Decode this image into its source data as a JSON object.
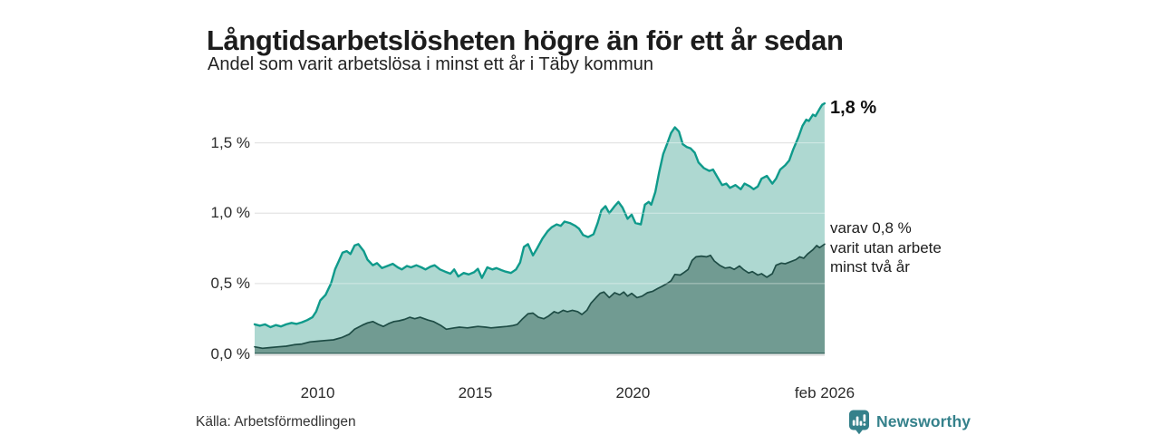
{
  "header": {
    "title": "Långtidsarbetslösheten högre än för ett år sedan",
    "subtitle": "Andel som varit arbetslösa i minst ett år i Täby kommun"
  },
  "chart_data": {
    "type": "area",
    "title": "Långtidsarbetslösheten högre än för ett år sedan",
    "subtitle": "Andel som varit arbetslösa i minst ett år i Täby kommun",
    "grid": true,
    "x_range": [
      2008.0,
      2026.083
    ],
    "y_range": [
      0,
      1.8
    ],
    "colors": {
      "series1_line": "#0f9a8b",
      "series1_fill": "#aed8d1",
      "series2_line": "#1e4c45",
      "series2_fill": "#719b92",
      "gridline": "#cccccc",
      "baseline": "#2c5a52"
    },
    "y_ticks": [
      {
        "label": "1,5 %",
        "value": 1.5
      },
      {
        "label": "1,0 %",
        "value": 1.0
      },
      {
        "label": "0,5 %",
        "value": 0.5
      },
      {
        "label": "0,0 %",
        "value": 0.0
      }
    ],
    "x_ticks": [
      {
        "label": "2010",
        "year": 2010
      },
      {
        "label": "2015",
        "year": 2015
      },
      {
        "label": "2020",
        "year": 2020
      },
      {
        "label": "feb 2026",
        "year": 2026.083
      }
    ],
    "annotations": {
      "end_label": "1,8 %",
      "side_lines": [
        "varav 0,8 %",
        "varit utan arbete",
        "minst två år"
      ]
    },
    "series": [
      {
        "name": "Andel som varit arbetslösa i minst ett år",
        "end_value_label": "1,8 %",
        "points": [
          [
            2008.0,
            0.21
          ],
          [
            2008.17,
            0.2
          ],
          [
            2008.33,
            0.21
          ],
          [
            2008.5,
            0.19
          ],
          [
            2008.67,
            0.205
          ],
          [
            2008.83,
            0.195
          ],
          [
            2009.0,
            0.21
          ],
          [
            2009.17,
            0.22
          ],
          [
            2009.33,
            0.213
          ],
          [
            2009.5,
            0.225
          ],
          [
            2009.67,
            0.24
          ],
          [
            2009.83,
            0.26
          ],
          [
            2009.95,
            0.3
          ],
          [
            2010.08,
            0.38
          ],
          [
            2010.25,
            0.42
          ],
          [
            2010.42,
            0.5
          ],
          [
            2010.55,
            0.6
          ],
          [
            2010.67,
            0.66
          ],
          [
            2010.79,
            0.72
          ],
          [
            2010.92,
            0.73
          ],
          [
            2011.04,
            0.71
          ],
          [
            2011.17,
            0.77
          ],
          [
            2011.29,
            0.78
          ],
          [
            2011.46,
            0.73
          ],
          [
            2011.58,
            0.67
          ],
          [
            2011.75,
            0.63
          ],
          [
            2011.88,
            0.645
          ],
          [
            2012.04,
            0.61
          ],
          [
            2012.21,
            0.625
          ],
          [
            2012.38,
            0.64
          ],
          [
            2012.54,
            0.615
          ],
          [
            2012.67,
            0.6
          ],
          [
            2012.83,
            0.625
          ],
          [
            2012.96,
            0.615
          ],
          [
            2013.13,
            0.63
          ],
          [
            2013.29,
            0.615
          ],
          [
            2013.42,
            0.6
          ],
          [
            2013.58,
            0.62
          ],
          [
            2013.71,
            0.63
          ],
          [
            2013.88,
            0.6
          ],
          [
            2014.04,
            0.585
          ],
          [
            2014.21,
            0.57
          ],
          [
            2014.33,
            0.6
          ],
          [
            2014.46,
            0.55
          ],
          [
            2014.63,
            0.575
          ],
          [
            2014.79,
            0.565
          ],
          [
            2014.96,
            0.58
          ],
          [
            2015.08,
            0.605
          ],
          [
            2015.21,
            0.54
          ],
          [
            2015.38,
            0.615
          ],
          [
            2015.54,
            0.6
          ],
          [
            2015.67,
            0.61
          ],
          [
            2015.83,
            0.595
          ],
          [
            2015.96,
            0.585
          ],
          [
            2016.13,
            0.575
          ],
          [
            2016.29,
            0.6
          ],
          [
            2016.42,
            0.65
          ],
          [
            2016.54,
            0.76
          ],
          [
            2016.67,
            0.78
          ],
          [
            2016.83,
            0.7
          ],
          [
            2016.96,
            0.75
          ],
          [
            2017.13,
            0.82
          ],
          [
            2017.29,
            0.87
          ],
          [
            2017.42,
            0.9
          ],
          [
            2017.58,
            0.92
          ],
          [
            2017.71,
            0.91
          ],
          [
            2017.83,
            0.94
          ],
          [
            2018.0,
            0.93
          ],
          [
            2018.17,
            0.91
          ],
          [
            2018.29,
            0.89
          ],
          [
            2018.42,
            0.845
          ],
          [
            2018.58,
            0.83
          ],
          [
            2018.75,
            0.85
          ],
          [
            2018.88,
            0.93
          ],
          [
            2019.0,
            1.02
          ],
          [
            2019.13,
            1.05
          ],
          [
            2019.25,
            1.0
          ],
          [
            2019.42,
            1.05
          ],
          [
            2019.54,
            1.08
          ],
          [
            2019.67,
            1.04
          ],
          [
            2019.83,
            0.96
          ],
          [
            2019.96,
            0.99
          ],
          [
            2020.08,
            0.93
          ],
          [
            2020.25,
            0.92
          ],
          [
            2020.38,
            1.06
          ],
          [
            2020.5,
            1.08
          ],
          [
            2020.58,
            1.06
          ],
          [
            2020.71,
            1.15
          ],
          [
            2020.83,
            1.29
          ],
          [
            2020.96,
            1.42
          ],
          [
            2021.08,
            1.49
          ],
          [
            2021.21,
            1.57
          ],
          [
            2021.33,
            1.61
          ],
          [
            2021.46,
            1.58
          ],
          [
            2021.58,
            1.49
          ],
          [
            2021.71,
            1.47
          ],
          [
            2021.83,
            1.46
          ],
          [
            2021.96,
            1.43
          ],
          [
            2022.08,
            1.36
          ],
          [
            2022.25,
            1.32
          ],
          [
            2022.42,
            1.3
          ],
          [
            2022.54,
            1.31
          ],
          [
            2022.67,
            1.26
          ],
          [
            2022.83,
            1.2
          ],
          [
            2022.96,
            1.21
          ],
          [
            2023.08,
            1.18
          ],
          [
            2023.25,
            1.2
          ],
          [
            2023.42,
            1.17
          ],
          [
            2023.54,
            1.21
          ],
          [
            2023.71,
            1.19
          ],
          [
            2023.83,
            1.17
          ],
          [
            2023.96,
            1.19
          ],
          [
            2024.08,
            1.245
          ],
          [
            2024.25,
            1.265
          ],
          [
            2024.42,
            1.21
          ],
          [
            2024.54,
            1.245
          ],
          [
            2024.67,
            1.31
          ],
          [
            2024.83,
            1.34
          ],
          [
            2024.96,
            1.375
          ],
          [
            2025.08,
            1.45
          ],
          [
            2025.25,
            1.54
          ],
          [
            2025.38,
            1.62
          ],
          [
            2025.5,
            1.665
          ],
          [
            2025.58,
            1.655
          ],
          [
            2025.71,
            1.7
          ],
          [
            2025.79,
            1.69
          ],
          [
            2025.92,
            1.74
          ],
          [
            2026.0,
            1.77
          ],
          [
            2026.08,
            1.78
          ]
        ]
      },
      {
        "name": "varav varit utan arbete minst två år",
        "end_value_label": "0,8 %",
        "points": [
          [
            2008.0,
            0.05
          ],
          [
            2008.25,
            0.04
          ],
          [
            2008.5,
            0.045
          ],
          [
            2008.75,
            0.05
          ],
          [
            2009.0,
            0.055
          ],
          [
            2009.25,
            0.065
          ],
          [
            2009.5,
            0.07
          ],
          [
            2009.75,
            0.085
          ],
          [
            2010.0,
            0.09
          ],
          [
            2010.25,
            0.095
          ],
          [
            2010.5,
            0.1
          ],
          [
            2010.75,
            0.115
          ],
          [
            2011.0,
            0.14
          ],
          [
            2011.17,
            0.175
          ],
          [
            2011.42,
            0.205
          ],
          [
            2011.58,
            0.22
          ],
          [
            2011.75,
            0.23
          ],
          [
            2011.92,
            0.21
          ],
          [
            2012.08,
            0.195
          ],
          [
            2012.25,
            0.215
          ],
          [
            2012.42,
            0.23
          ],
          [
            2012.58,
            0.235
          ],
          [
            2012.75,
            0.245
          ],
          [
            2012.92,
            0.26
          ],
          [
            2013.08,
            0.25
          ],
          [
            2013.25,
            0.26
          ],
          [
            2013.5,
            0.24
          ],
          [
            2013.67,
            0.23
          ],
          [
            2013.92,
            0.2
          ],
          [
            2014.08,
            0.175
          ],
          [
            2014.33,
            0.185
          ],
          [
            2014.5,
            0.19
          ],
          [
            2014.75,
            0.185
          ],
          [
            2014.92,
            0.19
          ],
          [
            2015.08,
            0.195
          ],
          [
            2015.33,
            0.19
          ],
          [
            2015.5,
            0.185
          ],
          [
            2015.75,
            0.19
          ],
          [
            2016.0,
            0.195
          ],
          [
            2016.17,
            0.2
          ],
          [
            2016.33,
            0.21
          ],
          [
            2016.5,
            0.25
          ],
          [
            2016.67,
            0.285
          ],
          [
            2016.83,
            0.29
          ],
          [
            2017.0,
            0.26
          ],
          [
            2017.17,
            0.25
          ],
          [
            2017.33,
            0.27
          ],
          [
            2017.5,
            0.3
          ],
          [
            2017.63,
            0.29
          ],
          [
            2017.79,
            0.31
          ],
          [
            2017.92,
            0.3
          ],
          [
            2018.08,
            0.31
          ],
          [
            2018.25,
            0.3
          ],
          [
            2018.38,
            0.28
          ],
          [
            2018.54,
            0.31
          ],
          [
            2018.67,
            0.36
          ],
          [
            2018.83,
            0.4
          ],
          [
            2018.96,
            0.43
          ],
          [
            2019.08,
            0.44
          ],
          [
            2019.25,
            0.4
          ],
          [
            2019.42,
            0.435
          ],
          [
            2019.58,
            0.42
          ],
          [
            2019.71,
            0.44
          ],
          [
            2019.83,
            0.41
          ],
          [
            2019.96,
            0.43
          ],
          [
            2020.13,
            0.4
          ],
          [
            2020.29,
            0.41
          ],
          [
            2020.46,
            0.435
          ],
          [
            2020.63,
            0.445
          ],
          [
            2020.79,
            0.465
          ],
          [
            2020.92,
            0.48
          ],
          [
            2021.08,
            0.5
          ],
          [
            2021.21,
            0.52
          ],
          [
            2021.33,
            0.565
          ],
          [
            2021.5,
            0.56
          ],
          [
            2021.63,
            0.58
          ],
          [
            2021.75,
            0.6
          ],
          [
            2021.88,
            0.665
          ],
          [
            2022.0,
            0.69
          ],
          [
            2022.17,
            0.695
          ],
          [
            2022.33,
            0.69
          ],
          [
            2022.46,
            0.7
          ],
          [
            2022.58,
            0.66
          ],
          [
            2022.75,
            0.63
          ],
          [
            2022.92,
            0.61
          ],
          [
            2023.08,
            0.615
          ],
          [
            2023.21,
            0.6
          ],
          [
            2023.38,
            0.625
          ],
          [
            2023.5,
            0.6
          ],
          [
            2023.67,
            0.575
          ],
          [
            2023.79,
            0.585
          ],
          [
            2023.96,
            0.56
          ],
          [
            2024.08,
            0.57
          ],
          [
            2024.25,
            0.545
          ],
          [
            2024.42,
            0.57
          ],
          [
            2024.54,
            0.63
          ],
          [
            2024.71,
            0.645
          ],
          [
            2024.83,
            0.64
          ],
          [
            2025.0,
            0.655
          ],
          [
            2025.17,
            0.67
          ],
          [
            2025.29,
            0.69
          ],
          [
            2025.42,
            0.68
          ],
          [
            2025.54,
            0.71
          ],
          [
            2025.71,
            0.74
          ],
          [
            2025.83,
            0.77
          ],
          [
            2025.92,
            0.755
          ],
          [
            2026.08,
            0.78
          ]
        ]
      }
    ]
  },
  "footer": {
    "source": "Källa: Arbetsförmedlingen",
    "brand": "Newsworthy"
  }
}
